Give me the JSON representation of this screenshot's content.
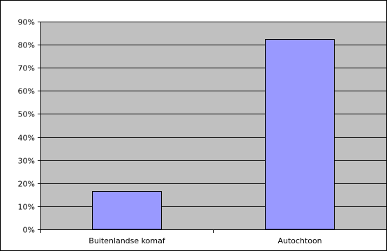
{
  "chart_data": {
    "type": "bar",
    "categories": [
      "Buitenlandse komaf",
      "Autochtoon"
    ],
    "values": [
      0.165,
      0.823
    ],
    "value_format": "percent",
    "title": "",
    "xlabel": "",
    "ylabel": "",
    "ylim": [
      0,
      0.9
    ],
    "yticks": [
      0,
      0.1,
      0.2,
      0.3,
      0.4,
      0.5,
      0.6,
      0.7,
      0.8,
      0.9
    ],
    "ytick_labels": [
      "0%",
      "10%",
      "20%",
      "30%",
      "40%",
      "50%",
      "60%",
      "70%",
      "80%",
      "90%"
    ],
    "grid": true,
    "legend": "none",
    "colors": {
      "plot_background": "#c0c0c0",
      "bar_fill": "#9999ff",
      "bar_stroke": "#000000",
      "gridline": "#000000"
    }
  }
}
